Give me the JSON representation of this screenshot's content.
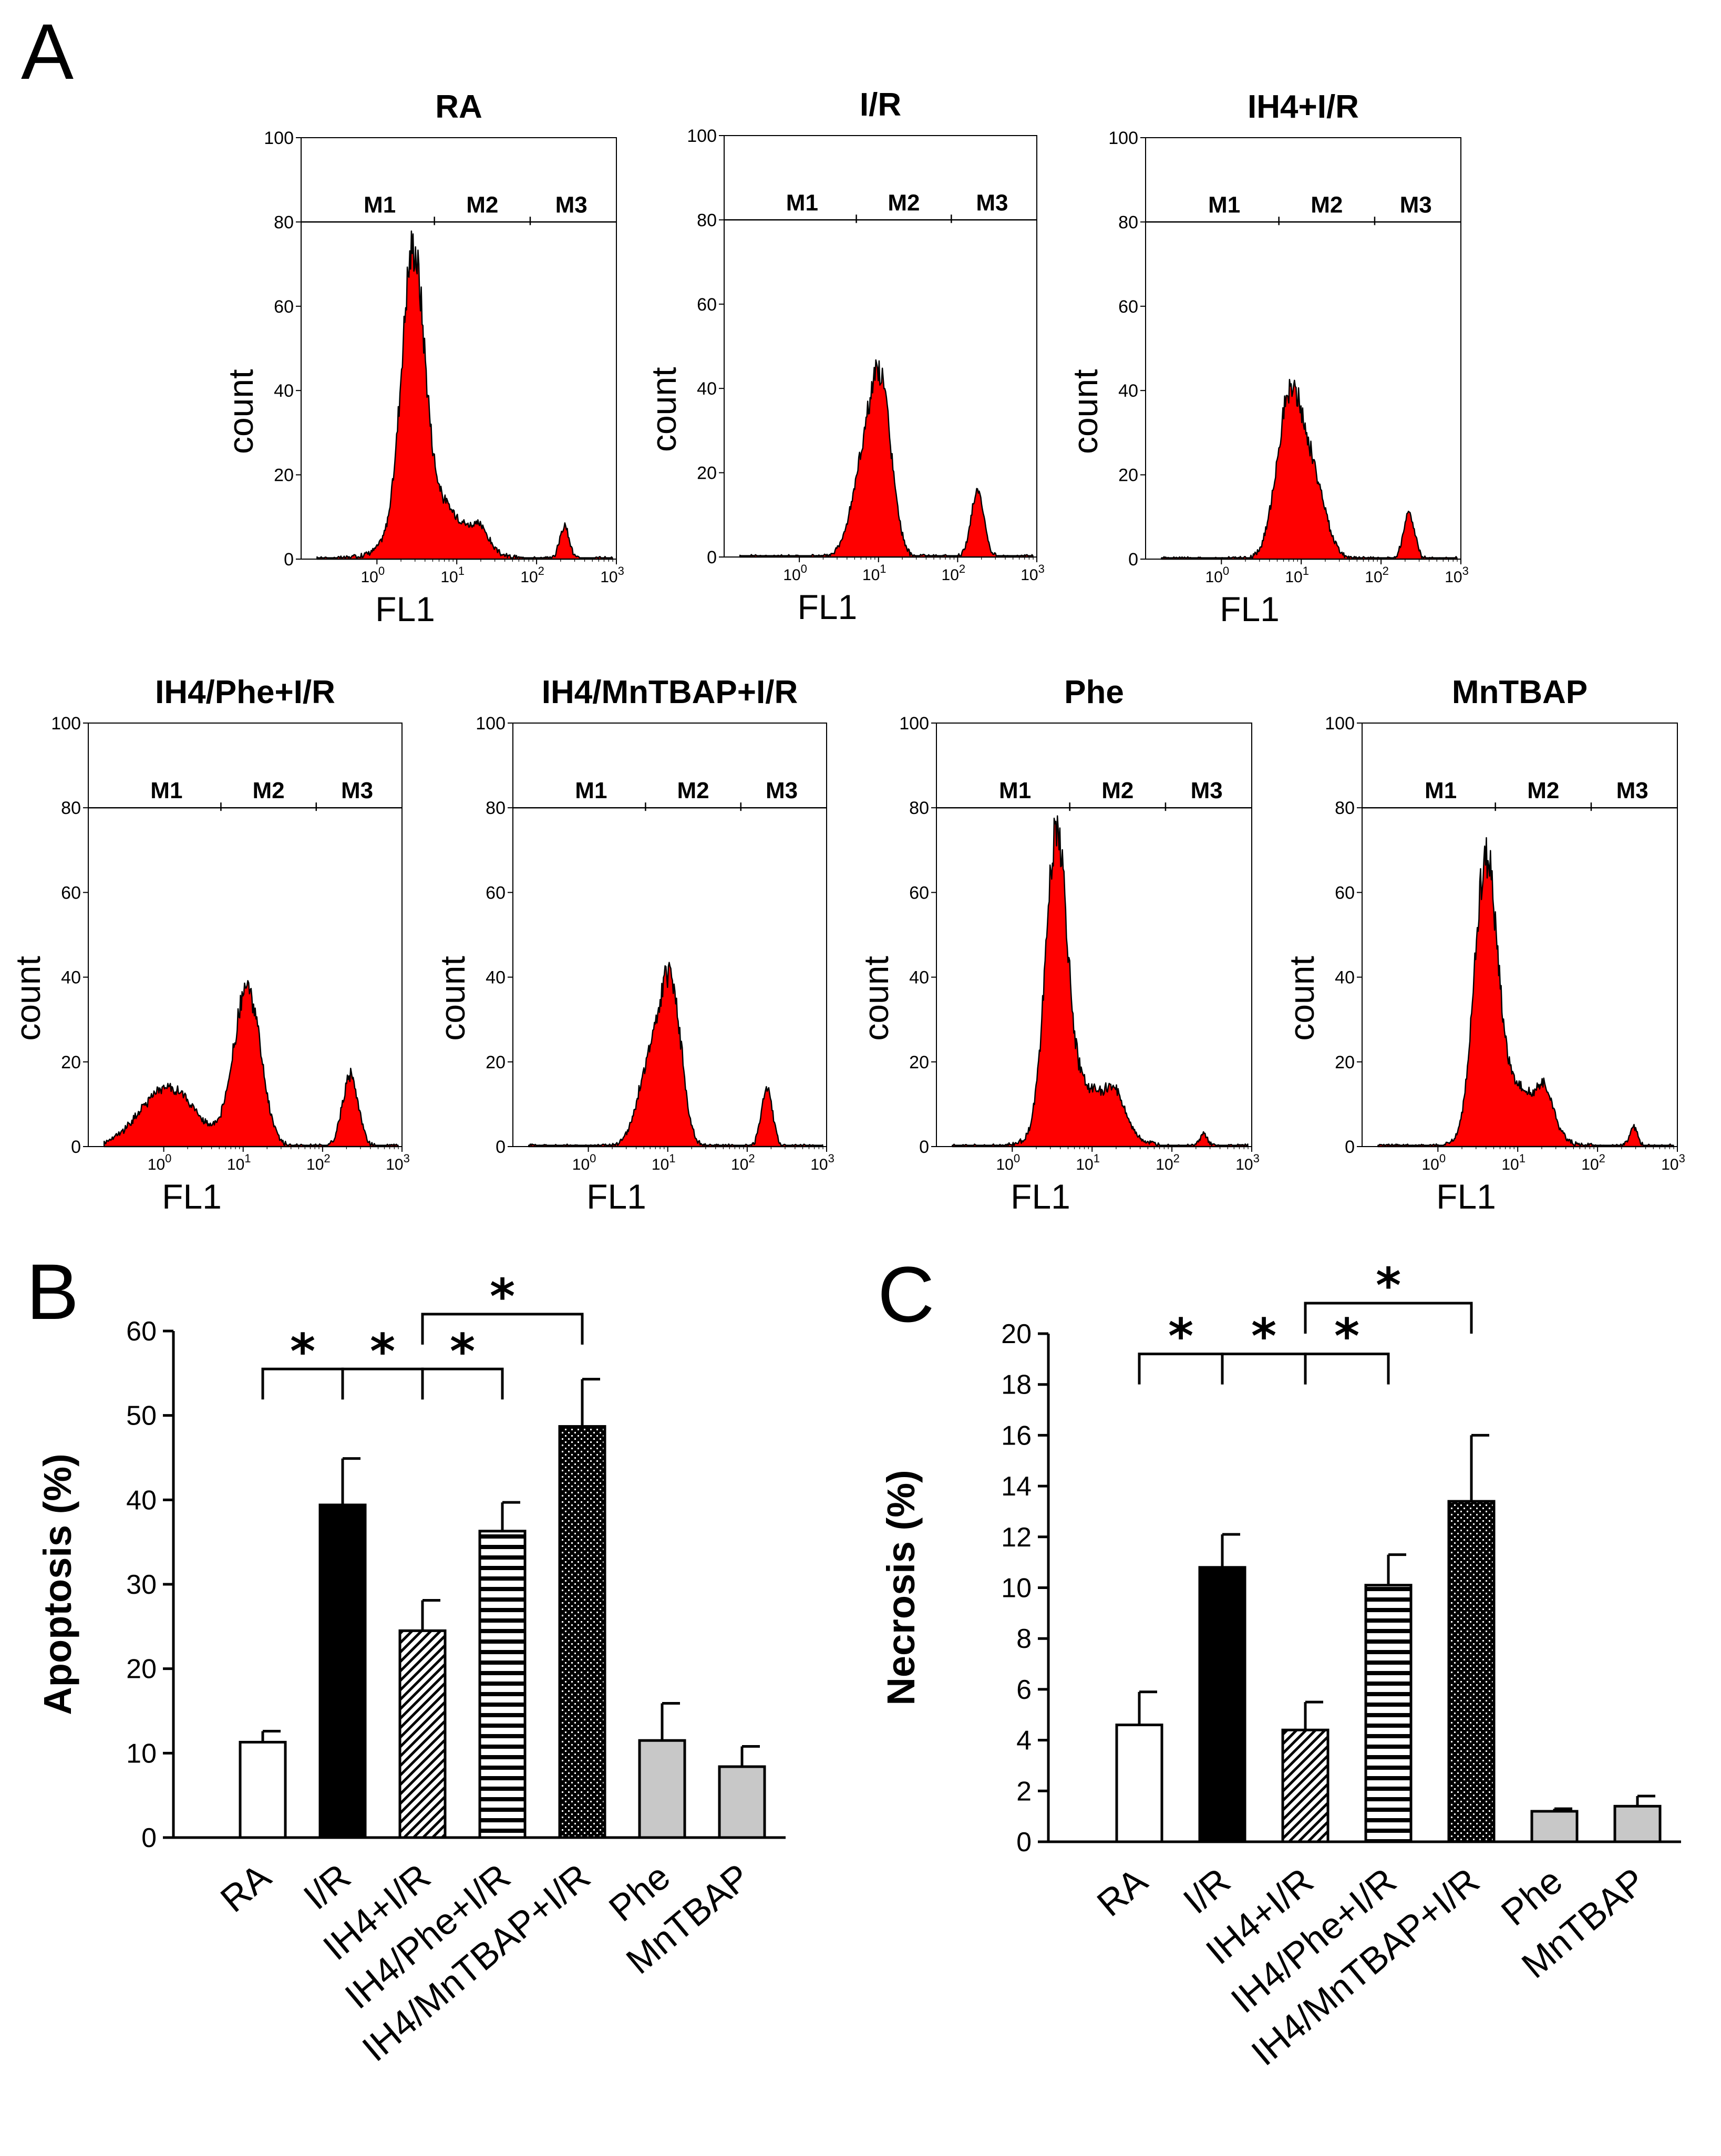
{
  "panel_labels": {
    "a": "A",
    "b": "B",
    "c": "C"
  },
  "colors": {
    "histogram_fill": "#ff0000",
    "histogram_outline": "#000000",
    "bar_gray": "#c8c8c8",
    "bar_black": "#000000",
    "bar_white": "#ffffff"
  },
  "histograms": {
    "ylabel": "count",
    "xlabel": "FL1",
    "y_ticks": [
      "0",
      "20",
      "40",
      "60",
      "80",
      "100"
    ],
    "x_tick_bases": [
      "10",
      "10",
      "10",
      "10"
    ],
    "x_tick_exponents": [
      "0",
      "1",
      "2",
      "3"
    ],
    "marker_labels": [
      "M1",
      "M2",
      "M3"
    ],
    "panels": [
      {
        "title": "RA",
        "peaks": [
          [
            0.45,
            63,
            0.14
          ],
          [
            0.7,
            14,
            0.38
          ],
          [
            1.3,
            4,
            0.1
          ],
          [
            2.35,
            8,
            0.06
          ]
        ]
      },
      {
        "title": "I/R",
        "peaks": [
          [
            0.85,
            24,
            0.17
          ],
          [
            1.05,
            30,
            0.13
          ],
          [
            2.25,
            16,
            0.08
          ]
        ]
      },
      {
        "title": "IH4+I/R",
        "peaks": [
          [
            0.85,
            37,
            0.16
          ],
          [
            1.15,
            17,
            0.16
          ],
          [
            2.35,
            11,
            0.07
          ]
        ]
      },
      {
        "title": "IH4/Phe+I/R",
        "peaks": [
          [
            0.05,
            14,
            0.35
          ],
          [
            1.05,
            37,
            0.17
          ],
          [
            2.35,
            17,
            0.1
          ]
        ]
      },
      {
        "title": "IH4/MnTBAP+I/R",
        "peaks": [
          [
            0.8,
            20,
            0.17
          ],
          [
            1.05,
            33,
            0.13
          ],
          [
            2.25,
            14,
            0.07
          ]
        ]
      },
      {
        "title": "Phe",
        "peaks": [
          [
            0.55,
            67,
            0.13
          ],
          [
            0.9,
            14,
            0.35
          ],
          [
            1.3,
            6,
            0.12
          ],
          [
            2.4,
            3,
            0.05
          ]
        ]
      },
      {
        "title": "MnTBAP",
        "peaks": [
          [
            0.6,
            61,
            0.14
          ],
          [
            0.95,
            14,
            0.32
          ],
          [
            1.35,
            8,
            0.1
          ],
          [
            2.45,
            5,
            0.05
          ]
        ]
      }
    ]
  },
  "chart_data": [
    {
      "type": "bar",
      "panel": "B",
      "title": "",
      "xlabel": "",
      "ylabel": "Apoptosis (%)",
      "ylim": [
        0,
        60
      ],
      "yticks": [
        "0",
        "10",
        "20",
        "30",
        "40",
        "50",
        "60"
      ],
      "categories": [
        "RA",
        "I/R",
        "IH4+I/R",
        "IH4/Phe+I/R",
        "IH4/MnTBAP+I/R",
        "Phe",
        "MnTBAP"
      ],
      "values": [
        11.3,
        39.4,
        24.5,
        36.3,
        48.7,
        11.5,
        8.4
      ],
      "errors": [
        1.3,
        5.5,
        3.6,
        3.4,
        5.6,
        4.4,
        2.4
      ],
      "fills": [
        "white",
        "black",
        "hatch",
        "hlines",
        "dots",
        "gray",
        "gray"
      ],
      "annotations": [
        {
          "label": "*",
          "from": 0,
          "to": 1,
          "level": 55.5
        },
        {
          "label": "*",
          "from": 1,
          "to": 2,
          "level": 55.5
        },
        {
          "label": "*",
          "from": 2,
          "to": 3,
          "level": 55.5
        },
        {
          "label": "*",
          "from": 2,
          "to": 4,
          "level": 62
        }
      ]
    },
    {
      "type": "bar",
      "panel": "C",
      "title": "",
      "xlabel": "",
      "ylabel": "Necrosis (%)",
      "ylim": [
        0,
        20
      ],
      "yticks": [
        "0",
        "2",
        "4",
        "6",
        "8",
        "10",
        "12",
        "14",
        "16",
        "18",
        "20"
      ],
      "categories": [
        "RA",
        "I/R",
        "IH4+I/R",
        "IH4/Phe+I/R",
        "IH4/MnTBAP+I/R",
        "Phe",
        "MnTBAP"
      ],
      "values": [
        4.6,
        10.8,
        4.4,
        10.1,
        13.4,
        1.2,
        1.4
      ],
      "errors": [
        1.3,
        1.3,
        1.1,
        1.2,
        2.6,
        0.1,
        0.4
      ],
      "fills": [
        "white",
        "black",
        "hatch",
        "hlines",
        "dots",
        "gray",
        "gray"
      ],
      "annotations": [
        {
          "label": "*",
          "from": 0,
          "to": 1,
          "level": 19.2
        },
        {
          "label": "*",
          "from": 1,
          "to": 2,
          "level": 19.2
        },
        {
          "label": "*",
          "from": 2,
          "to": 3,
          "level": 19.2
        },
        {
          "label": "*",
          "from": 2,
          "to": 4,
          "level": 21.2
        }
      ]
    }
  ]
}
